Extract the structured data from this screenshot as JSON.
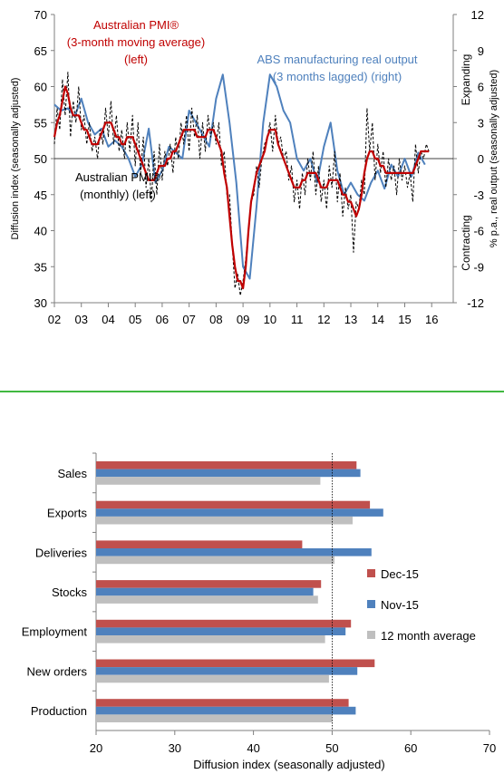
{
  "chart_data": [
    {
      "type": "line",
      "title": "",
      "xlabel": "",
      "ylabel": "Diffusion index (seasonally adjusted)",
      "ylabel_right": "% p.a., real output (seasonally adjusted)",
      "ylim": [
        30,
        70
      ],
      "ylim_right": [
        -12,
        12
      ],
      "yticks": [
        30,
        35,
        40,
        45,
        50,
        55,
        60,
        65,
        70
      ],
      "yticks_right": [
        -12,
        -9,
        -6,
        -3,
        0,
        3,
        6,
        9,
        12
      ],
      "xlim": [
        2002,
        2016.8
      ],
      "xticks": [
        2002,
        2003,
        2004,
        2005,
        2006,
        2007,
        2008,
        2009,
        2010,
        2011,
        2012,
        2013,
        2014,
        2015,
        2016
      ],
      "xtick_labels": [
        "02",
        "03",
        "04",
        "05",
        "06",
        "07",
        "08",
        "09",
        "10",
        "11",
        "12",
        "13",
        "14",
        "15",
        "16"
      ],
      "grid": false,
      "reference_line": {
        "axis": "right",
        "value": 0
      },
      "region_labels": {
        "upper": "Expanding",
        "lower": "Contracting"
      },
      "annotations": {
        "pmi_ma": [
          "Australian PMI®",
          "(3-month moving average)",
          "(left)"
        ],
        "abs": [
          "ABS manufacturing real output",
          "(3 months lagged) (right)"
        ],
        "pmi_monthly": [
          "Australian PMI®",
          "(monthly) (left)"
        ]
      },
      "colors": {
        "pmi_monthly": "#000000",
        "pmi_ma": "#c00000",
        "abs": "#4f81bd"
      },
      "series": [
        {
          "axis": "left",
          "style": "dashed",
          "x": [
            2002.0,
            2002.1,
            2002.2,
            2002.3,
            2002.4,
            2002.5,
            2002.6,
            2002.7,
            2002.8,
            2002.9,
            2003.0,
            2003.1,
            2003.2,
            2003.3,
            2003.4,
            2003.5,
            2003.6,
            2003.7,
            2003.8,
            2003.9,
            2004.0,
            2004.1,
            2004.2,
            2004.3,
            2004.4,
            2004.5,
            2004.6,
            2004.7,
            2004.8,
            2004.9,
            2005.0,
            2005.1,
            2005.2,
            2005.3,
            2005.4,
            2005.5,
            2005.6,
            2005.7,
            2005.8,
            2005.9,
            2006.0,
            2006.1,
            2006.2,
            2006.3,
            2006.4,
            2006.5,
            2006.6,
            2006.7,
            2006.8,
            2006.9,
            2007.0,
            2007.1,
            2007.2,
            2007.3,
            2007.4,
            2007.5,
            2007.6,
            2007.7,
            2007.8,
            2007.9,
            2008.0,
            2008.1,
            2008.2,
            2008.3,
            2008.4,
            2008.5,
            2008.6,
            2008.7,
            2008.8,
            2008.9,
            2009.0,
            2009.1,
            2009.2,
            2009.3,
            2009.4,
            2009.5,
            2009.6,
            2009.7,
            2009.8,
            2009.9,
            2010.0,
            2010.1,
            2010.2,
            2010.3,
            2010.4,
            2010.5,
            2010.6,
            2010.7,
            2010.8,
            2010.9,
            2011.0,
            2011.1,
            2011.2,
            2011.3,
            2011.4,
            2011.5,
            2011.6,
            2011.7,
            2011.8,
            2011.9,
            2012.0,
            2012.1,
            2012.2,
            2012.3,
            2012.4,
            2012.5,
            2012.6,
            2012.7,
            2012.8,
            2012.9,
            2013.0,
            2013.1,
            2013.2,
            2013.3,
            2013.4,
            2013.5,
            2013.6,
            2013.7,
            2013.8,
            2013.9,
            2014.0,
            2014.1,
            2014.2,
            2014.3,
            2014.4,
            2014.5,
            2014.6,
            2014.7,
            2014.8,
            2014.9,
            2015.0,
            2015.1,
            2015.2,
            2015.3,
            2015.4,
            2015.5,
            2015.6,
            2015.7,
            2015.8,
            2015.9
          ],
          "values": [
            52,
            57,
            54,
            61,
            56,
            62,
            53,
            58,
            55,
            60,
            54,
            56,
            52,
            55,
            51,
            53,
            50,
            54,
            52,
            57,
            53,
            58,
            52,
            56,
            51,
            54,
            50,
            55,
            51,
            56,
            49,
            55,
            48,
            53,
            46,
            50,
            44,
            51,
            45,
            52,
            47,
            51,
            49,
            52,
            48,
            53,
            50,
            55,
            52,
            56,
            51,
            57,
            53,
            56,
            50,
            55,
            51,
            56,
            53,
            55,
            52,
            55,
            49,
            51,
            45,
            45,
            38,
            32,
            34,
            31,
            33,
            36,
            40,
            44,
            45,
            49,
            46,
            50,
            52,
            53,
            55,
            51,
            56,
            52,
            53,
            50,
            51,
            47,
            49,
            44,
            47,
            43,
            48,
            45,
            50,
            47,
            51,
            45,
            49,
            44,
            47,
            43,
            49,
            46,
            51,
            44,
            48,
            42,
            46,
            43,
            45,
            37,
            44,
            43,
            47,
            45,
            57,
            51,
            55,
            47,
            52,
            48,
            51,
            46,
            50,
            47,
            49,
            45,
            50,
            47,
            49,
            46,
            48,
            44,
            52,
            48,
            51,
            50,
            52,
            51
          ]
        },
        {
          "axis": "left",
          "style": "solid",
          "x": [
            2002.0,
            2002.1,
            2002.2,
            2002.3,
            2002.4,
            2002.5,
            2002.6,
            2002.7,
            2002.8,
            2002.9,
            2003.0,
            2003.1,
            2003.2,
            2003.3,
            2003.4,
            2003.5,
            2003.6,
            2003.7,
            2003.8,
            2003.9,
            2004.0,
            2004.1,
            2004.2,
            2004.3,
            2004.4,
            2004.5,
            2004.6,
            2004.7,
            2004.8,
            2004.9,
            2005.0,
            2005.1,
            2005.2,
            2005.3,
            2005.4,
            2005.5,
            2005.6,
            2005.7,
            2005.8,
            2005.9,
            2006.0,
            2006.1,
            2006.2,
            2006.3,
            2006.4,
            2006.5,
            2006.6,
            2006.7,
            2006.8,
            2006.9,
            2007.0,
            2007.1,
            2007.2,
            2007.3,
            2007.4,
            2007.5,
            2007.6,
            2007.7,
            2007.8,
            2007.9,
            2008.0,
            2008.1,
            2008.2,
            2008.3,
            2008.4,
            2008.5,
            2008.6,
            2008.7,
            2008.8,
            2008.9,
            2009.0,
            2009.1,
            2009.2,
            2009.3,
            2009.4,
            2009.5,
            2009.6,
            2009.7,
            2009.8,
            2009.9,
            2010.0,
            2010.1,
            2010.2,
            2010.3,
            2010.4,
            2010.5,
            2010.6,
            2010.7,
            2010.8,
            2010.9,
            2011.0,
            2011.1,
            2011.2,
            2011.3,
            2011.4,
            2011.5,
            2011.6,
            2011.7,
            2011.8,
            2011.9,
            2012.0,
            2012.1,
            2012.2,
            2012.3,
            2012.4,
            2012.5,
            2012.6,
            2012.7,
            2012.8,
            2012.9,
            2013.0,
            2013.1,
            2013.2,
            2013.3,
            2013.4,
            2013.5,
            2013.6,
            2013.7,
            2013.8,
            2013.9,
            2014.0,
            2014.1,
            2014.2,
            2014.3,
            2014.4,
            2014.5,
            2014.6,
            2014.7,
            2014.8,
            2014.9,
            2015.0,
            2015.1,
            2015.2,
            2015.3,
            2015.4,
            2015.5,
            2015.6,
            2015.7,
            2015.8,
            2015.9
          ],
          "values": [
            53,
            55,
            56,
            58,
            60,
            59,
            57,
            56,
            56,
            56,
            55,
            54,
            54,
            53,
            52,
            52,
            52,
            53,
            54,
            55,
            55,
            55,
            54,
            53,
            53,
            52,
            52,
            53,
            53,
            53,
            52,
            51,
            50,
            49,
            48,
            47,
            47,
            47,
            48,
            49,
            49,
            49,
            50,
            50,
            51,
            51,
            52,
            53,
            54,
            54,
            54,
            54,
            54,
            53,
            53,
            53,
            53,
            54,
            54,
            54,
            53,
            52,
            51,
            48,
            46,
            42,
            38,
            35,
            33,
            33,
            32,
            35,
            40,
            44,
            46,
            48,
            49,
            50,
            51,
            53,
            54,
            54,
            54,
            52,
            51,
            50,
            49,
            48,
            47,
            46,
            46,
            46,
            47,
            47,
            48,
            48,
            48,
            48,
            47,
            46,
            46,
            46,
            47,
            47,
            47,
            47,
            46,
            45,
            45,
            44,
            44,
            43,
            42,
            43,
            45,
            48,
            50,
            51,
            51,
            50,
            50,
            49,
            49,
            48,
            48,
            48,
            48,
            48,
            48,
            48,
            48,
            48,
            48,
            48,
            49,
            50,
            51,
            51,
            51,
            51
          ]
        },
        {
          "axis": "right",
          "style": "solid",
          "x": [
            2002.0,
            2002.25,
            2002.5,
            2002.75,
            2003.0,
            2003.25,
            2003.5,
            2003.75,
            2004.0,
            2004.25,
            2004.5,
            2004.75,
            2005.0,
            2005.25,
            2005.5,
            2005.75,
            2006.0,
            2006.25,
            2006.5,
            2006.75,
            2007.0,
            2007.25,
            2007.5,
            2007.75,
            2008.0,
            2008.25,
            2008.5,
            2008.75,
            2009.0,
            2009.25,
            2009.5,
            2009.75,
            2010.0,
            2010.25,
            2010.5,
            2010.75,
            2011.0,
            2011.25,
            2011.5,
            2011.75,
            2012.0,
            2012.25,
            2012.5,
            2012.75,
            2013.0,
            2013.25,
            2013.5,
            2013.75,
            2014.0,
            2014.25,
            2014.5,
            2014.75,
            2015.0,
            2015.25,
            2015.5,
            2015.75
          ],
          "values": [
            4.5,
            4.0,
            4.2,
            3.5,
            5.0,
            3.0,
            2.0,
            2.5,
            1.0,
            1.5,
            1.0,
            0.0,
            -1.5,
            -0.5,
            2.5,
            -2.0,
            -1.0,
            1.0,
            0.5,
            0.0,
            4.0,
            3.0,
            2.0,
            1.0,
            5.0,
            7.0,
            3.0,
            -2.0,
            -9.0,
            -10.0,
            -4.0,
            3.0,
            7.0,
            6.0,
            4.0,
            3.0,
            0.0,
            -1.0,
            0.0,
            -2.0,
            1.0,
            3.0,
            -1.0,
            -3.0,
            -2.0,
            -3.0,
            -3.5,
            -2.0,
            -1.0,
            -2.5,
            -0.5,
            -1.5,
            0.0,
            -1.5,
            0.5,
            -0.5
          ]
        }
      ]
    },
    {
      "type": "bar",
      "orientation": "horizontal",
      "title": "",
      "xlabel": "Diffusion index (seasonally adjusted)",
      "xlim": [
        20,
        70
      ],
      "xticks": [
        20,
        30,
        40,
        50,
        60,
        70
      ],
      "reference_line": 50,
      "grid": false,
      "legend_position": "right",
      "categories": [
        "Sales",
        "Exports",
        "Deliveries",
        "Stocks",
        "Employment",
        "New orders",
        "Production"
      ],
      "colors": [
        "#c0504d",
        "#4f81bd",
        "#bfbfbf"
      ],
      "series": [
        {
          "name": "Dec-15",
          "values": [
            53.1,
            54.8,
            46.2,
            48.6,
            52.4,
            55.4,
            52.1
          ]
        },
        {
          "name": "Nov-15",
          "values": [
            53.6,
            56.5,
            55.0,
            47.6,
            51.7,
            53.2,
            53.0
          ]
        },
        {
          "name": "12 month average",
          "values": [
            48.5,
            52.6,
            50.3,
            48.2,
            49.1,
            49.6,
            50.0
          ]
        }
      ]
    }
  ]
}
